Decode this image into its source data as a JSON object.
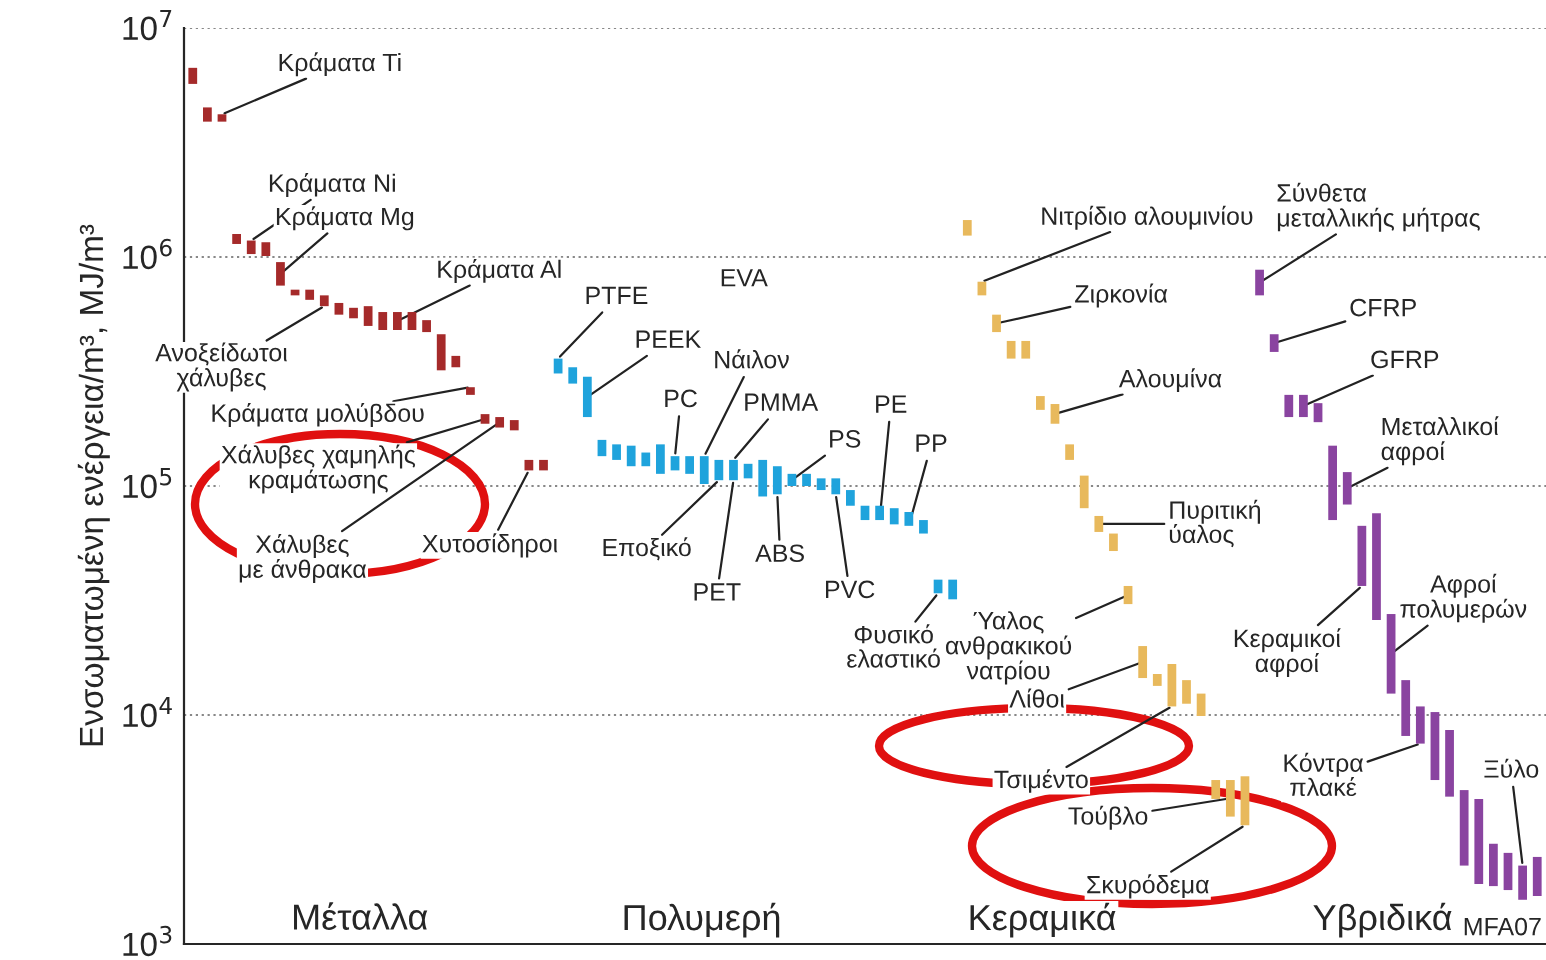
{
  "chart_data": {
    "type": "bar",
    "log": true,
    "ylabel": "Ενσωματωμένη ενέργεια/m³, MJ/m³",
    "tick_labels": "y",
    "categories": [
      null,
      null,
      null,
      null,
      null,
      null,
      null,
      null,
      null,
      null,
      null,
      null,
      null,
      null,
      null,
      null,
      null,
      null,
      null,
      null,
      null,
      null,
      null,
      null,
      null,
      null,
      null,
      null,
      null,
      null,
      null,
      null,
      null,
      null,
      null,
      null,
      null,
      null,
      null,
      null,
      null,
      null,
      null,
      null,
      null,
      null,
      null,
      null,
      null,
      null,
      null,
      null,
      null,
      null,
      null,
      null,
      null,
      null,
      null,
      null,
      null,
      null,
      null,
      null,
      null,
      null,
      null,
      null,
      null,
      null,
      null,
      null,
      null,
      null,
      null,
      null,
      null,
      null,
      null,
      null,
      null,
      null,
      null,
      null,
      null,
      null,
      null,
      null,
      null,
      null,
      null,
      null,
      null
    ],
    "ylim": [
      1000,
      10000000
    ],
    "yticks": [
      {
        "value": 1000,
        "label": "10$^{3}$"
      },
      {
        "value": 10000,
        "label": "10$^{4}$"
      },
      {
        "value": 100000,
        "label": "10$^{5}$"
      },
      {
        "value": 1000000,
        "label": "10$^{6}$"
      },
      {
        "value": 10000000,
        "label": "10$^{7}$"
      }
    ],
    "grid": "y",
    "base": [
      5700000,
      3900000,
      3900000,
      1140000,
      1030000,
      1010000,
      750000,
      680000,
      650000,
      610000,
      560000,
      540000,
      500000,
      480000,
      480000,
      480000,
      470000,
      320000,
      330000,
      250000,
      187000,
      180000,
      175000,
      117000,
      117000,
      310000,
      280000,
      200000,
      135000,
      130000,
      122000,
      122000,
      113000,
      117000,
      113000,
      102000,
      106000,
      106000,
      108000,
      90000,
      92000,
      100000,
      100000,
      96000,
      92000,
      82000,
      71000,
      71000,
      68000,
      67000,
      62000,
      34000,
      32000,
      1240000,
      680000,
      470000,
      360000,
      360000,
      215000,
      187000,
      130000,
      80000,
      63000,
      52000,
      30500,
      14500,
      13400,
      10900,
      11200,
      9900,
      4300,
      3600,
      3300,
      680000,
      385000,
      200000,
      200000,
      190000,
      71000,
      83000,
      36600,
      26000,
      12400,
      8100,
      7500,
      5200,
      4400,
      2200,
      1830,
      1790,
      1720,
      1560,
      1620
    ],
    "values": [
      1000000,
      600000,
      300000,
      120000,
      150000,
      150000,
      200000,
      40000,
      70000,
      70000,
      70000,
      60000,
      110000,
      95000,
      95000,
      95000,
      60000,
      140000,
      40000,
      20000,
      19000,
      20000,
      19000,
      13000,
      13000,
      50000,
      50000,
      100000,
      24000,
      22000,
      28000,
      18000,
      39000,
      18000,
      22000,
      33000,
      24000,
      24000,
      17000,
      40000,
      30000,
      13000,
      13000,
      12000,
      16000,
      14000,
      11000,
      11000,
      12000,
      10000,
      9000,
      5000,
      7000,
      210000,
      100000,
      90000,
      70000,
      70000,
      32000,
      41000,
      22000,
      31000,
      11000,
      10000,
      6100,
      5500,
      1700,
      5800,
      3000,
      2500,
      900,
      1600,
      2100,
      200000,
      75000,
      50000,
      50000,
      40000,
      79000,
      32000,
      30400,
      50000,
      15200,
      6100,
      3400,
      5100,
      4200,
      2500,
      2470,
      950,
      780,
      640,
      780
    ],
    "colors": [
      "#a52a2a",
      "#a52a2a",
      "#a52a2a",
      "#a52a2a",
      "#a52a2a",
      "#a52a2a",
      "#a52a2a",
      "#a52a2a",
      "#a52a2a",
      "#a52a2a",
      "#a52a2a",
      "#a52a2a",
      "#a52a2a",
      "#a52a2a",
      "#a52a2a",
      "#a52a2a",
      "#a52a2a",
      "#a52a2a",
      "#a52a2a",
      "#a52a2a",
      "#a52a2a",
      "#a52a2a",
      "#a52a2a",
      "#a52a2a",
      "#a52a2a",
      "#1fa3dc",
      "#1fa3dc",
      "#1fa3dc",
      "#1fa3dc",
      "#1fa3dc",
      "#1fa3dc",
      "#1fa3dc",
      "#1fa3dc",
      "#1fa3dc",
      "#1fa3dc",
      "#1fa3dc",
      "#1fa3dc",
      "#1fa3dc",
      "#1fa3dc",
      "#1fa3dc",
      "#1fa3dc",
      "#1fa3dc",
      "#1fa3dc",
      "#1fa3dc",
      "#1fa3dc",
      "#1fa3dc",
      "#1fa3dc",
      "#1fa3dc",
      "#1fa3dc",
      "#1fa3dc",
      "#1fa3dc",
      "#1fa3dc",
      "#1fa3dc",
      "#e8b95c",
      "#e8b95c",
      "#e8b95c",
      "#e8b95c",
      "#e8b95c",
      "#e8b95c",
      "#e8b95c",
      "#e8b95c",
      "#e8b95c",
      "#e8b95c",
      "#e8b95c",
      "#e8b95c",
      "#e8b95c",
      "#e8b95c",
      "#e8b95c",
      "#e8b95c",
      "#e8b95c",
      "#e8b95c",
      "#e8b95c",
      "#e8b95c",
      "#8a44a0",
      "#8a44a0",
      "#8a44a0",
      "#8a44a0",
      "#8a44a0",
      "#8a44a0",
      "#8a44a0",
      "#8a44a0",
      "#8a44a0",
      "#8a44a0",
      "#8a44a0",
      "#8a44a0",
      "#8a44a0",
      "#8a44a0",
      "#8a44a0",
      "#8a44a0",
      "#8a44a0",
      "#8a44a0",
      "#8a44a0",
      "#8a44a0"
    ],
    "annotations": [
      "Κράματα Ti",
      "Κράματα Ni",
      "Κράματα Mg",
      "Κράματα Al",
      "Ανοξείδωτοι\nχάλυβες",
      "Κράματα μολύβδου",
      "Χάλυβες χαμηλής\nκραμάτωσης",
      "Χάλυβες\nμε άνθρακα",
      "Χυτοσίδηροι",
      "PTFE",
      "PEEK",
      "PC",
      "Νάιλον",
      "PMMA",
      "PS",
      "PE",
      "PP",
      "Εποξικό",
      "PET",
      "ABS",
      "PVC",
      "Φυσικό\nελαστικό",
      "Νιτρίδιο αλουμινίου",
      "Ζιρκονία",
      "Αλουμίνα",
      "Πυριτική\nύαλος",
      "Ύαλος\nανθρακικού\nνατρίου",
      "Λίθοι",
      "Τσιμέντο",
      "Τούβλο",
      "Σκυρόδεμα",
      "Σύνθετα\nμεταλλικής μήτρας",
      "CFRP",
      "GFRP",
      "Μεταλλικοί\nαφροί",
      "Κεραμικοί\nαφροί",
      "Αφροί\nπολυμερών",
      "Κόντρα\nπλακέ",
      "Ξύλο",
      "Μέταλλα",
      "Πολυμερή",
      "Κεραμικά",
      "Υβριδικά",
      "EVA",
      "MFA07"
    ]
  }
}
